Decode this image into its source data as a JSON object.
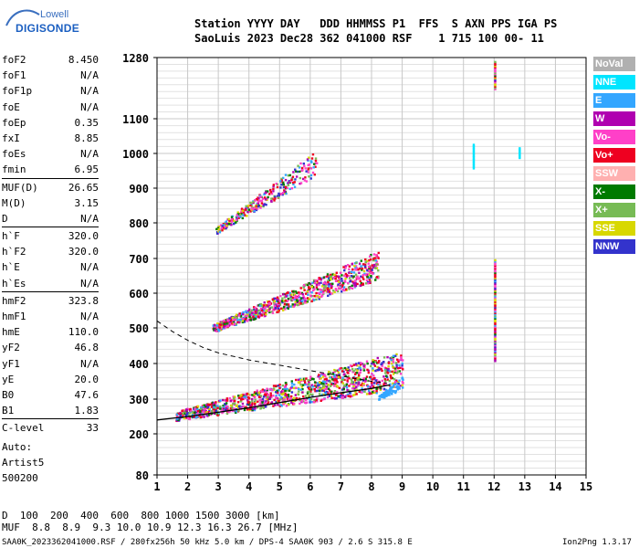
{
  "header": {
    "logo_top": "Lowell",
    "logo_bottom": "DIGISONDE",
    "line1": "Station YYYY DAY   DDD HHMMSS P1  FFS  S AXN PPS IGA PS",
    "line2": "SaoLuis 2023 Dec28 362 041000 RSF    1 715 100 00- 11"
  },
  "params": [
    {
      "label": "foF2",
      "value": "8.450"
    },
    {
      "label": "foF1",
      "value": "N/A"
    },
    {
      "label": "foF1p",
      "value": "N/A"
    },
    {
      "label": "foE",
      "value": "N/A"
    },
    {
      "label": "foEp",
      "value": "0.35"
    },
    {
      "label": "fxI",
      "value": "8.85"
    },
    {
      "label": "foEs",
      "value": "N/A"
    },
    {
      "label": "fmin",
      "value": "6.95"
    },
    {
      "label": "MUF(D)",
      "value": "26.65"
    },
    {
      "label": "M(D)",
      "value": "3.15"
    },
    {
      "label": "D",
      "value": "N/A"
    },
    {
      "label": "h`F",
      "value": "320.0"
    },
    {
      "label": "h`F2",
      "value": "320.0"
    },
    {
      "label": "h`E",
      "value": "N/A"
    },
    {
      "label": "h`Es",
      "value": "N/A"
    },
    {
      "label": "hmF2",
      "value": "323.8"
    },
    {
      "label": "hmF1",
      "value": "N/A"
    },
    {
      "label": "hmE",
      "value": "110.0"
    },
    {
      "label": "yF2",
      "value": "46.8"
    },
    {
      "label": "yF1",
      "value": "N/A"
    },
    {
      "label": "yE",
      "value": "20.0"
    },
    {
      "label": "B0",
      "value": "47.6"
    },
    {
      "label": "B1",
      "value": "1.83"
    },
    {
      "label": "C-level",
      "value": "33"
    }
  ],
  "auto_lines": [
    "Auto:",
    "Artist5",
    "500200"
  ],
  "legend": [
    {
      "label": "NoVal",
      "color": "#b0b0b0"
    },
    {
      "label": "NNE",
      "color": "#00e5ff"
    },
    {
      "label": "E",
      "color": "#33a6ff"
    },
    {
      "label": "W",
      "color": "#b000b0"
    },
    {
      "label": "Vo-",
      "color": "#ff40c8"
    },
    {
      "label": "Vo+",
      "color": "#ee0020"
    },
    {
      "label": "SSW",
      "color": "#ffb0b0"
    },
    {
      "label": "X-",
      "color": "#007a00"
    },
    {
      "label": "X+",
      "color": "#77bb55"
    },
    {
      "label": "SSE",
      "color": "#d8d800"
    },
    {
      "label": "NNW",
      "color": "#3333cc"
    }
  ],
  "muf_table": {
    "d_label": "D",
    "d_values": "  100  200  400  600  800 1000 1500 3000 [km]",
    "muf_label": "MUF",
    "muf_values": "  8.8  8.9  9.3 10.0 10.9 12.3 16.3 26.7 [MHz]"
  },
  "footer": {
    "left": "SAA0K_2023362041000.RSF / 280fx256h 50 kHz 5.0 km / DPS-4 SAA0K 903 / 2.6 S 315.8 E",
    "right": "Ion2Png 1.3.17"
  },
  "chart_data": {
    "type": "scatter",
    "title": "",
    "xlabel": "",
    "ylabel": "",
    "xlim": [
      1,
      15
    ],
    "ylim": [
      80,
      1280
    ],
    "xticks": [
      1,
      2,
      3,
      4,
      5,
      6,
      7,
      8,
      9,
      10,
      11,
      12,
      13,
      14,
      15
    ],
    "yticks": [
      80,
      200,
      300,
      400,
      500,
      600,
      700,
      800,
      900,
      1000,
      1100,
      1280
    ],
    "grid": true,
    "traces": [
      {
        "name": "O-trace F2",
        "color_key": "mixed",
        "x_range": [
          1.6,
          9.0
        ],
        "y_base": [
          240,
          330
        ],
        "spread": 90
      },
      {
        "name": "2nd hop",
        "color_key": "mixed",
        "x_range": [
          2.8,
          8.2
        ],
        "y_base": [
          490,
          640
        ],
        "spread": 70
      },
      {
        "name": "3rd hop",
        "color_key": "mixed",
        "x_range": [
          2.9,
          6.2
        ],
        "y_base": [
          770,
          940
        ],
        "spread": 60
      },
      {
        "name": "spread E-band",
        "color_key": "E",
        "x_range": [
          8.2,
          9.0
        ],
        "y_base": [
          300,
          330
        ],
        "spread": 30
      },
      {
        "name": "column 12 MHz",
        "color_key": "mixed",
        "x": 12.0,
        "y_range": [
          410,
          700
        ]
      },
      {
        "name": "column 12 MHz top",
        "color_key": "mixed",
        "x": 12.0,
        "y_range": [
          1190,
          1270
        ]
      },
      {
        "name": "NNE 11.3",
        "color_key": "NNE",
        "x": 11.3,
        "y_range": [
          960,
          1030
        ]
      },
      {
        "name": "NNE 12.8",
        "color_key": "NNE",
        "x": 12.8,
        "y_range": [
          990,
          1020
        ]
      }
    ],
    "profile_curve": {
      "x": [
        1.0,
        2.0,
        3.0,
        4.0,
        5.0,
        6.0,
        7.0,
        8.0,
        8.6
      ],
      "y": [
        240,
        250,
        262,
        275,
        290,
        305,
        318,
        330,
        340
      ]
    },
    "dashed_curve": {
      "x": [
        1.0,
        1.5,
        2.0,
        2.5,
        3.0,
        3.5,
        4.0,
        5.0,
        6.0,
        7.0,
        8.0,
        8.5
      ],
      "y": [
        520,
        490,
        465,
        445,
        430,
        420,
        410,
        395,
        380,
        365,
        350,
        345
      ]
    }
  }
}
